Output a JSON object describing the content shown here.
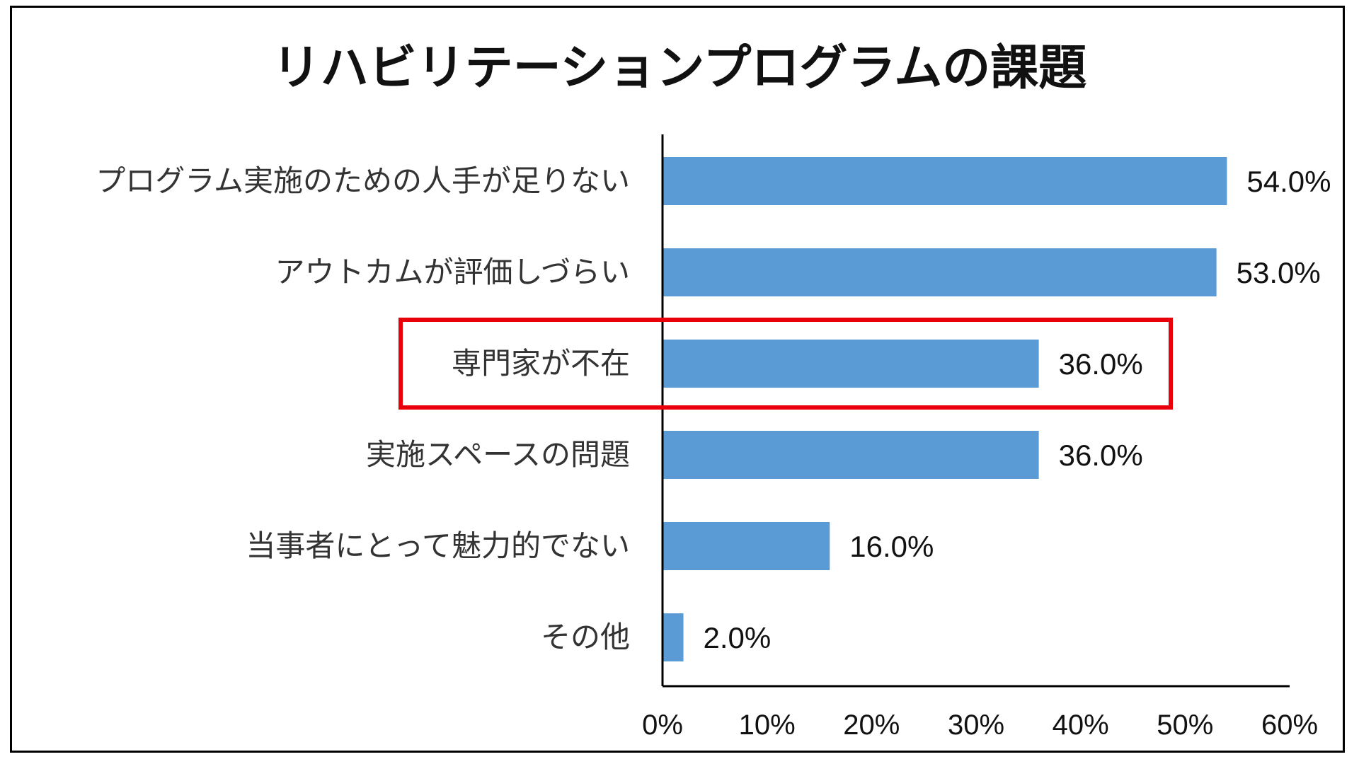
{
  "chart_data": {
    "type": "bar",
    "orientation": "horizontal",
    "title": "リハビリテーションプログラムの課題",
    "categories": [
      "プログラム実施のための人手が足りない",
      "アウトカムが評価しづらい",
      "専門家が不在",
      "実施スペースの問題",
      "当事者にとって魅力的でない",
      "その他"
    ],
    "values": [
      54.0,
      53.0,
      36.0,
      36.0,
      16.0,
      2.0
    ],
    "value_labels": [
      "54.0%",
      "53.0%",
      "36.0%",
      "36.0%",
      "16.0%",
      "2.0%"
    ],
    "xlim": [
      0,
      60
    ],
    "x_ticks": [
      0,
      10,
      20,
      30,
      40,
      50,
      60
    ],
    "x_tick_labels": [
      "0%",
      "10%",
      "20%",
      "30%",
      "40%",
      "50%",
      "60%"
    ],
    "highlighted_category_index": 2,
    "grid": false,
    "legend": "none",
    "colors": {
      "bar": "#5b9bd5",
      "highlight_box": "#e8000b",
      "axis": "#000000"
    }
  }
}
